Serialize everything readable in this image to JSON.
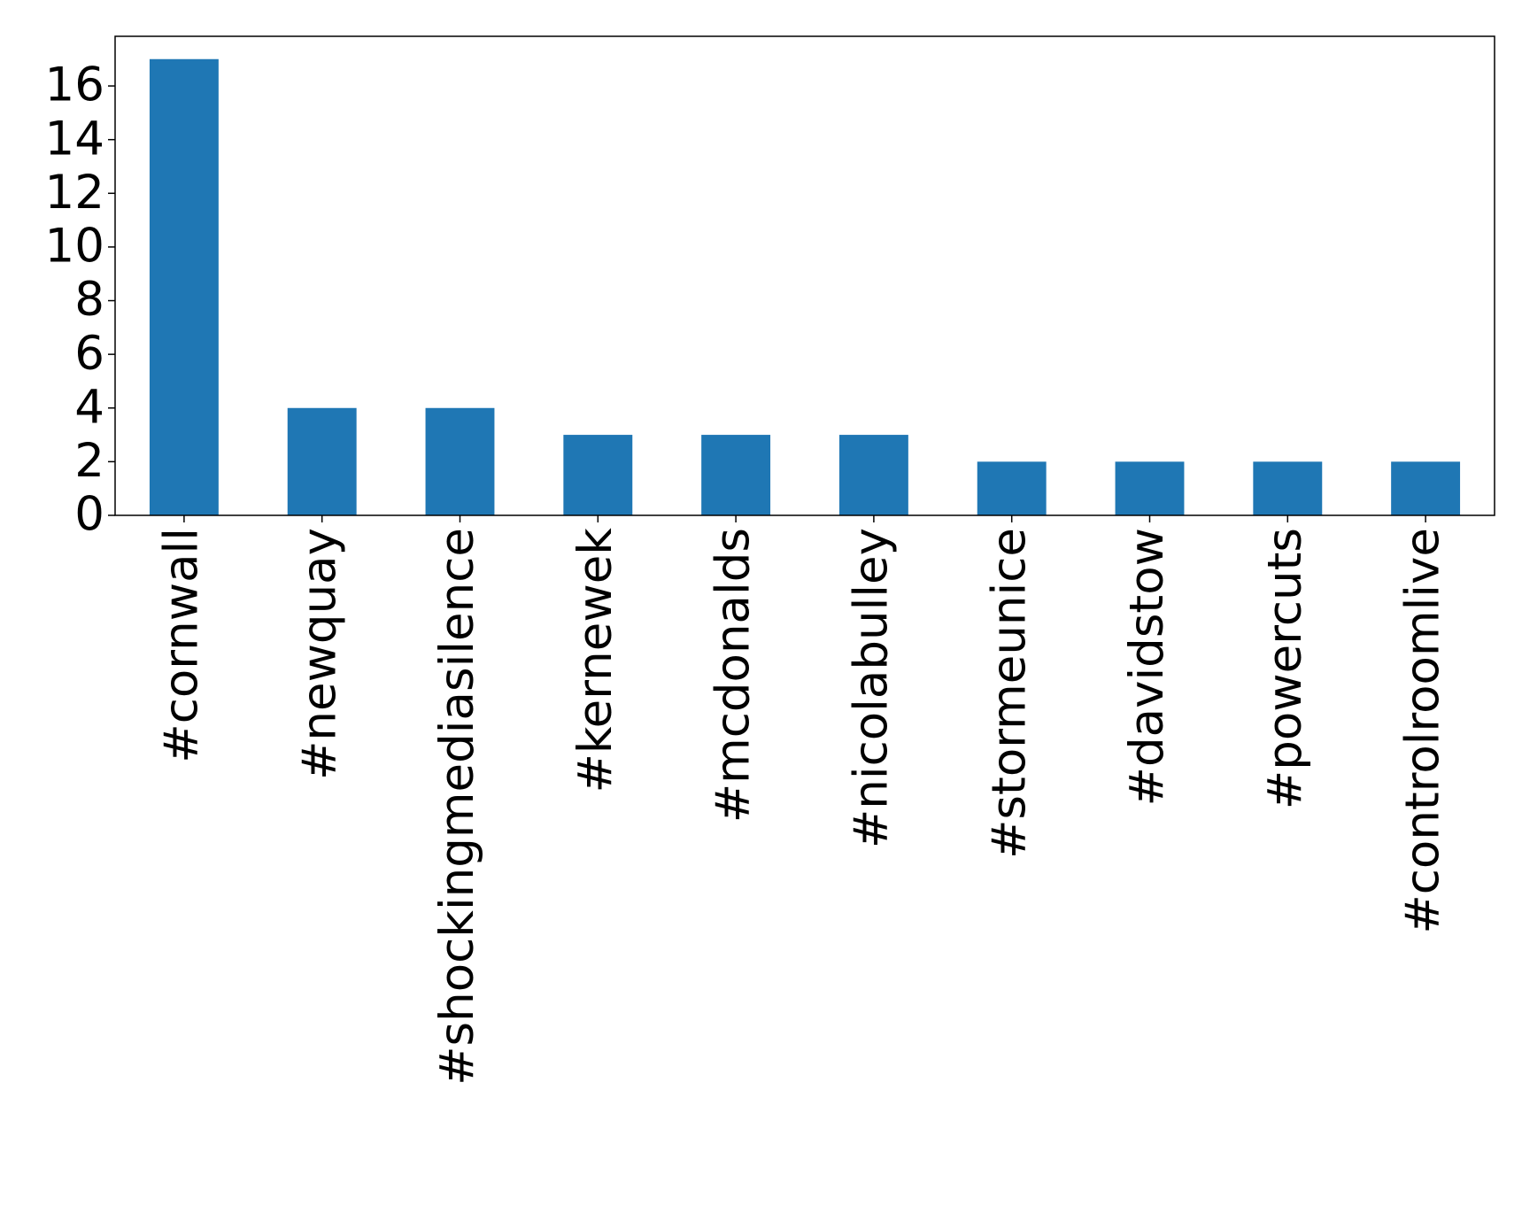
{
  "chart_data": {
    "type": "bar",
    "categories": [
      "#cornwall",
      "#newquay",
      "#shockingmediasilence",
      "#kernewek",
      "#mcdonalds",
      "#nicolabulley",
      "#stormeunice",
      "#davidstow",
      "#powercuts",
      "#controlroomlive"
    ],
    "values": [
      17,
      4,
      4,
      3,
      3,
      3,
      2,
      2,
      2,
      2
    ],
    "color": "#1f77b4",
    "ylim": [
      0,
      17.85
    ],
    "yticks": [
      0,
      2,
      4,
      6,
      8,
      10,
      12,
      14,
      16
    ],
    "grid": false
  }
}
